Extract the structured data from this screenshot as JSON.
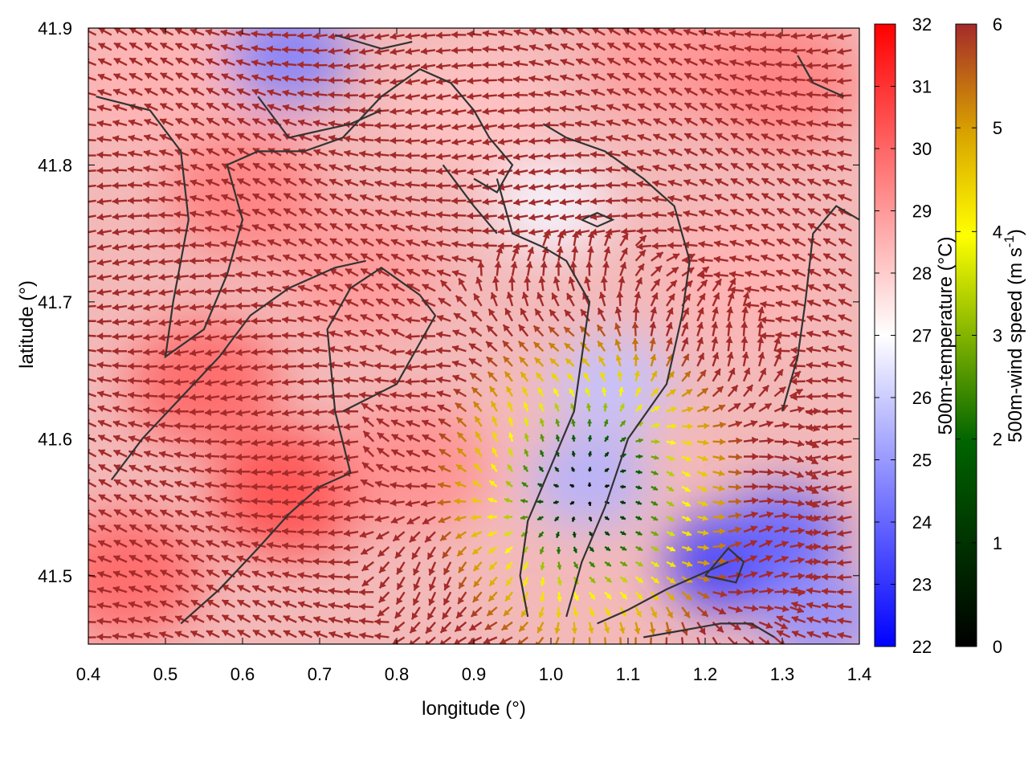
{
  "chart_data": {
    "type": "heatmap",
    "subtype": "vector-field-over-color-map",
    "xlabel": "longitude (°)",
    "ylabel": "latitude (°)",
    "xlim": [
      0.4,
      1.4
    ],
    "ylim": [
      41.45,
      41.9
    ],
    "x_ticks": [
      "0.4",
      "0.5",
      "0.6",
      "0.7",
      "0.8",
      "0.9",
      "1.0",
      "1.1",
      "1.2",
      "1.3",
      "1.4"
    ],
    "y_ticks": [
      "41.5",
      "41.6",
      "41.7",
      "41.8",
      "41.9"
    ],
    "color_scale": {
      "label": "500m-temperature (°C)",
      "range": [
        22,
        32
      ],
      "ticks": [
        "22",
        "23",
        "24",
        "25",
        "26",
        "27",
        "28",
        "29",
        "30",
        "31",
        "32"
      ],
      "colors": [
        "#0000ff",
        "#ffffff",
        "#ff0000"
      ]
    },
    "vector_scale": {
      "label_main": "500m-wind speed (m s",
      "label_exp": "-1",
      "label_end": ")",
      "range": [
        0,
        6
      ],
      "ticks": [
        "0",
        "1",
        "2",
        "3",
        "4",
        "5",
        "6"
      ],
      "colors": [
        "#000000",
        "#006400",
        "#ffff00",
        "#d8a000",
        "#a52a2a"
      ]
    },
    "warm_spots": [
      {
        "lon": 0.66,
        "lat": 41.56,
        "t": 30.5
      },
      {
        "lon": 0.55,
        "lat": 41.64,
        "t": 30.0
      },
      {
        "lon": 0.45,
        "lat": 41.5,
        "t": 30.0
      },
      {
        "lon": 0.6,
        "lat": 41.78,
        "t": 29.5
      },
      {
        "lon": 0.75,
        "lat": 41.72,
        "t": 29.0
      },
      {
        "lon": 0.82,
        "lat": 41.58,
        "t": 29.2
      },
      {
        "lon": 0.9,
        "lat": 41.84,
        "t": 28.2
      },
      {
        "lon": 1.15,
        "lat": 41.88,
        "t": 29.0
      },
      {
        "lon": 1.3,
        "lat": 41.86,
        "t": 29.5
      },
      {
        "lon": 1.25,
        "lat": 41.72,
        "t": 28.5
      },
      {
        "lon": 0.48,
        "lat": 41.86,
        "t": 28.5
      }
    ],
    "cool_spots": [
      {
        "lon": 0.66,
        "lat": 41.88,
        "t": 24.5
      },
      {
        "lon": 1.05,
        "lat": 41.57,
        "t": 25.5
      },
      {
        "lon": 1.08,
        "lat": 41.64,
        "t": 25.8
      },
      {
        "lon": 1.23,
        "lat": 41.51,
        "t": 23.0
      },
      {
        "lon": 1.3,
        "lat": 41.53,
        "t": 24.0
      },
      {
        "lon": 1.35,
        "lat": 41.47,
        "t": 24.8
      },
      {
        "lon": 1.0,
        "lat": 41.77,
        "t": 26.8
      }
    ],
    "wind_center": {
      "lon": 1.05,
      "lat": 41.56
    },
    "calm_zone_radius_deg": 0.2,
    "contour_color": "#333333",
    "contours": [
      [
        [
          0.52,
          41.465
        ],
        [
          0.57,
          41.49
        ],
        [
          0.62,
          41.52
        ],
        [
          0.66,
          41.545
        ],
        [
          0.7,
          41.565
        ],
        [
          0.74,
          41.575
        ],
        [
          0.72,
          41.62
        ],
        [
          0.71,
          41.68
        ],
        [
          0.74,
          41.71
        ],
        [
          0.78,
          41.725
        ],
        [
          0.83,
          41.705
        ],
        [
          0.85,
          41.69
        ],
        [
          0.83,
          41.67
        ],
        [
          0.8,
          41.64
        ],
        [
          0.73,
          41.62
        ]
      ],
      [
        [
          0.43,
          41.57
        ],
        [
          0.47,
          41.6
        ],
        [
          0.52,
          41.63
        ],
        [
          0.57,
          41.66
        ],
        [
          0.61,
          41.69
        ],
        [
          0.66,
          41.71
        ],
        [
          0.72,
          41.725
        ],
        [
          0.76,
          41.73
        ]
      ],
      [
        [
          0.41,
          41.85
        ],
        [
          0.48,
          41.84
        ],
        [
          0.52,
          41.81
        ],
        [
          0.53,
          41.76
        ],
        [
          0.51,
          41.7
        ],
        [
          0.5,
          41.66
        ],
        [
          0.55,
          41.68
        ],
        [
          0.58,
          41.72
        ],
        [
          0.6,
          41.76
        ],
        [
          0.58,
          41.8
        ],
        [
          0.62,
          41.81
        ],
        [
          0.68,
          41.81
        ],
        [
          0.73,
          41.82
        ],
        [
          0.78,
          41.85
        ],
        [
          0.83,
          41.87
        ],
        [
          0.87,
          41.86
        ],
        [
          0.9,
          41.84
        ],
        [
          0.92,
          41.82
        ],
        [
          0.95,
          41.8
        ],
        [
          0.93,
          41.78
        ],
        [
          0.9,
          41.79
        ]
      ],
      [
        [
          0.72,
          41.895
        ],
        [
          0.75,
          41.89
        ],
        [
          0.78,
          41.885
        ],
        [
          0.82,
          41.89
        ]
      ],
      [
        [
          0.62,
          41.85
        ],
        [
          0.66,
          41.82
        ],
        [
          0.7,
          41.825
        ],
        [
          0.74,
          41.83
        ],
        [
          0.78,
          41.84
        ]
      ],
      [
        [
          0.93,
          41.79
        ],
        [
          0.95,
          41.75
        ],
        [
          0.99,
          41.74
        ],
        [
          1.02,
          41.73
        ],
        [
          1.05,
          41.7
        ],
        [
          1.04,
          41.66
        ],
        [
          1.03,
          41.62
        ],
        [
          1.0,
          41.58
        ],
        [
          0.97,
          41.54
        ],
        [
          0.96,
          41.5
        ],
        [
          0.97,
          41.47
        ]
      ],
      [
        [
          0.86,
          41.8
        ],
        [
          0.9,
          41.77
        ],
        [
          0.93,
          41.75
        ]
      ],
      [
        [
          0.99,
          41.83
        ],
        [
          1.02,
          41.82
        ],
        [
          1.07,
          41.81
        ],
        [
          1.12,
          41.79
        ],
        [
          1.16,
          41.77
        ],
        [
          1.18,
          41.73
        ],
        [
          1.17,
          41.69
        ],
        [
          1.15,
          41.64
        ],
        [
          1.1,
          41.6
        ],
        [
          1.07,
          41.55
        ],
        [
          1.04,
          41.51
        ],
        [
          1.02,
          41.47
        ]
      ],
      [
        [
          1.04,
          41.76
        ],
        [
          1.06,
          41.755
        ],
        [
          1.08,
          41.76
        ],
        [
          1.06,
          41.765
        ],
        [
          1.04,
          41.76
        ]
      ],
      [
        [
          1.06,
          41.465
        ],
        [
          1.1,
          41.475
        ],
        [
          1.15,
          41.49
        ],
        [
          1.19,
          41.5
        ],
        [
          1.23,
          41.51
        ]
      ],
      [
        [
          1.2,
          41.5
        ],
        [
          1.23,
          41.52
        ],
        [
          1.25,
          41.51
        ],
        [
          1.24,
          41.495
        ],
        [
          1.2,
          41.5
        ]
      ],
      [
        [
          1.12,
          41.455
        ],
        [
          1.17,
          41.46
        ],
        [
          1.22,
          41.465
        ],
        [
          1.26,
          41.465
        ],
        [
          1.29,
          41.455
        ]
      ],
      [
        [
          1.3,
          41.62
        ],
        [
          1.32,
          41.66
        ],
        [
          1.33,
          41.7
        ],
        [
          1.34,
          41.75
        ],
        [
          1.37,
          41.77
        ],
        [
          1.4,
          41.76
        ]
      ],
      [
        [
          1.32,
          41.88
        ],
        [
          1.34,
          41.86
        ],
        [
          1.38,
          41.85
        ]
      ]
    ]
  }
}
